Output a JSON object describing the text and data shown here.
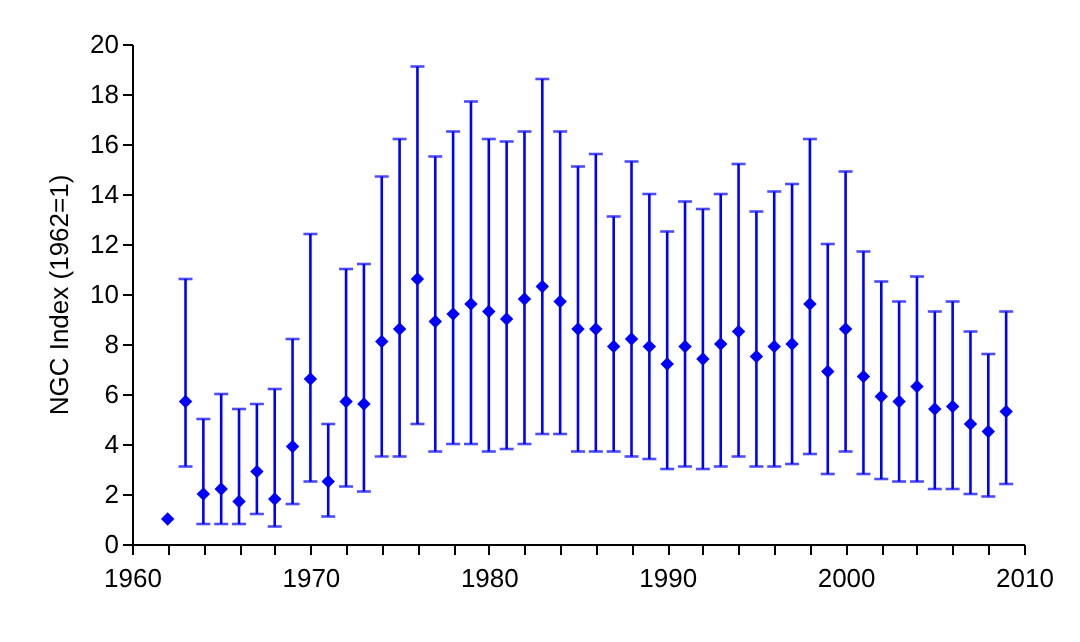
{
  "chart_data": {
    "type": "scatter",
    "ylabel": "NGC Index (1962=1)",
    "x": [
      1962,
      1963,
      1964,
      1965,
      1966,
      1967,
      1968,
      1969,
      1970,
      1971,
      1972,
      1973,
      1974,
      1975,
      1976,
      1977,
      1978,
      1979,
      1980,
      1981,
      1982,
      1983,
      1984,
      1985,
      1986,
      1987,
      1988,
      1989,
      1990,
      1991,
      1992,
      1993,
      1994,
      1995,
      1996,
      1997,
      1998,
      1999,
      2000,
      2001,
      2002,
      2003,
      2004,
      2005,
      2006,
      2007,
      2008,
      2009
    ],
    "series": [
      {
        "color": "#0000ff",
        "values": [
          1.0,
          5.7,
          2.0,
          2.2,
          1.7,
          2.9,
          1.8,
          3.9,
          6.6,
          2.5,
          5.7,
          5.6,
          8.1,
          8.6,
          10.6,
          8.9,
          9.2,
          9.6,
          9.3,
          9.0,
          9.8,
          10.3,
          9.7,
          8.6,
          8.6,
          7.9,
          8.2,
          7.9,
          7.2,
          7.9,
          7.4,
          8.0,
          8.5,
          7.5,
          7.9,
          8.0,
          9.6,
          6.9,
          8.6,
          6.7,
          5.9,
          5.7,
          6.3,
          5.4,
          5.5,
          4.8,
          4.5,
          5.3
        ],
        "errors": [
          null,
          [
            3.1,
            10.6
          ],
          [
            0.8,
            5.0
          ],
          [
            0.8,
            6.0
          ],
          [
            0.8,
            5.4
          ],
          [
            1.2,
            5.6
          ],
          [
            0.7,
            6.2
          ],
          [
            1.6,
            8.2
          ],
          [
            2.5,
            12.4
          ],
          [
            1.1,
            4.8
          ],
          [
            2.3,
            11.0
          ],
          [
            2.1,
            11.2
          ],
          [
            3.5,
            14.7
          ],
          [
            3.5,
            16.2
          ],
          [
            4.8,
            19.1
          ],
          [
            3.7,
            15.5
          ],
          [
            4.0,
            16.5
          ],
          [
            4.0,
            17.7
          ],
          [
            3.7,
            16.2
          ],
          [
            3.8,
            16.1
          ],
          [
            4.0,
            16.5
          ],
          [
            4.4,
            18.6
          ],
          [
            4.4,
            16.5
          ],
          [
            3.7,
            15.1
          ],
          [
            3.7,
            15.6
          ],
          [
            3.7,
            13.1
          ],
          [
            3.5,
            15.3
          ],
          [
            3.4,
            14.0
          ],
          [
            3.0,
            12.5
          ],
          [
            3.1,
            13.7
          ],
          [
            3.0,
            13.4
          ],
          [
            3.1,
            14.0
          ],
          [
            3.5,
            15.2
          ],
          [
            3.1,
            13.3
          ],
          [
            3.1,
            14.1
          ],
          [
            3.2,
            14.4
          ],
          [
            3.6,
            16.2
          ],
          [
            2.8,
            12.0
          ],
          [
            3.7,
            14.9
          ],
          [
            2.8,
            11.7
          ],
          [
            2.6,
            10.5
          ],
          [
            2.5,
            9.7
          ],
          [
            2.5,
            10.7
          ],
          [
            2.2,
            9.3
          ],
          [
            2.2,
            9.7
          ],
          [
            2.0,
            8.5
          ],
          [
            1.9,
            7.6
          ],
          [
            2.4,
            9.3
          ]
        ]
      }
    ],
    "marker": "diamond",
    "xlim": [
      1960,
      2010
    ],
    "xticks": [
      1960,
      {
        "value": 1962,
        "label": null
      },
      {
        "value": 1964,
        "label": null
      },
      {
        "value": 1966,
        "label": null
      },
      {
        "value": 1968,
        "label": null
      },
      1970,
      {
        "value": 1972,
        "label": null
      },
      {
        "value": 1974,
        "label": null
      },
      {
        "value": 1976,
        "label": null
      },
      {
        "value": 1978,
        "label": null
      },
      1980,
      {
        "value": 1982,
        "label": null
      },
      {
        "value": 1984,
        "label": null
      },
      {
        "value": 1986,
        "label": null
      },
      {
        "value": 1988,
        "label": null
      },
      1990,
      {
        "value": 1992,
        "label": null
      },
      {
        "value": 1994,
        "label": null
      },
      {
        "value": 1996,
        "label": null
      },
      {
        "value": 1998,
        "label": null
      },
      2000,
      {
        "value": 2002,
        "label": null
      },
      {
        "value": 2004,
        "label": null
      },
      {
        "value": 2006,
        "label": null
      },
      {
        "value": 2008,
        "label": null
      },
      2010
    ],
    "ylim": [
      0,
      20
    ],
    "yticks": [
      0,
      2,
      4,
      6,
      8,
      10,
      12,
      14,
      16,
      18,
      20
    ]
  }
}
